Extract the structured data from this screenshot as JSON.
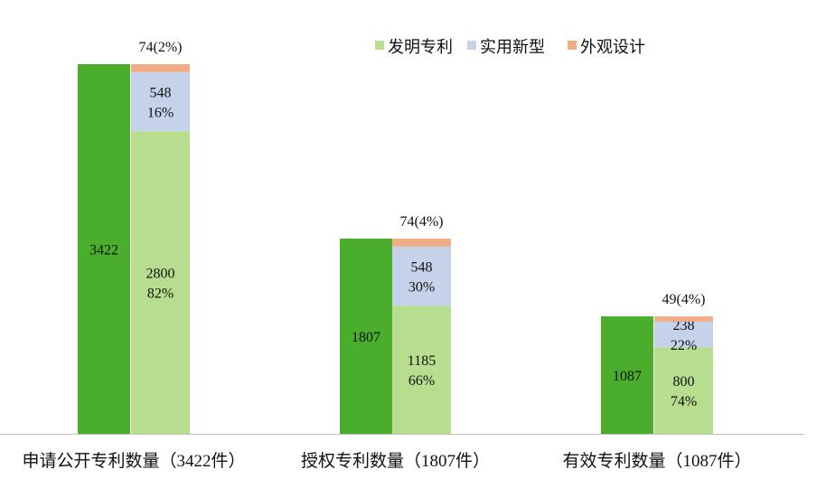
{
  "chart_data": {
    "type": "bar",
    "stacked_with_total_bar": true,
    "categories": [
      "申请公开专利数量（3422件）",
      "授权专利数量（1807件）",
      "有效专利数量（1087件）"
    ],
    "totals": [
      3422,
      1807,
      1087
    ],
    "total_labels": [
      "3422",
      "1807",
      "1087"
    ],
    "series": [
      {
        "name": "发明专利",
        "values": [
          2800,
          1185,
          800
        ],
        "labels": [
          "2800\n82%",
          "1185\n66%",
          "800\n74%"
        ]
      },
      {
        "name": "实用新型",
        "values": [
          548,
          548,
          238
        ],
        "labels": [
          "548\n16%",
          "548\n30%",
          "238\n22%"
        ]
      },
      {
        "name": "外观设计",
        "values": [
          74,
          74,
          49
        ],
        "labels": [
          "74(2%)",
          "74(4%)",
          "49(4%)"
        ]
      }
    ],
    "ylim": [
      0,
      3422
    ],
    "legend_position": "top-right",
    "colors": {
      "total": "#4aad2c",
      "发明专利": "#b7de8e",
      "实用新型": "#c5d2ea",
      "外观设计": "#f1ad86",
      "axis": "#bfbfbf"
    }
  }
}
